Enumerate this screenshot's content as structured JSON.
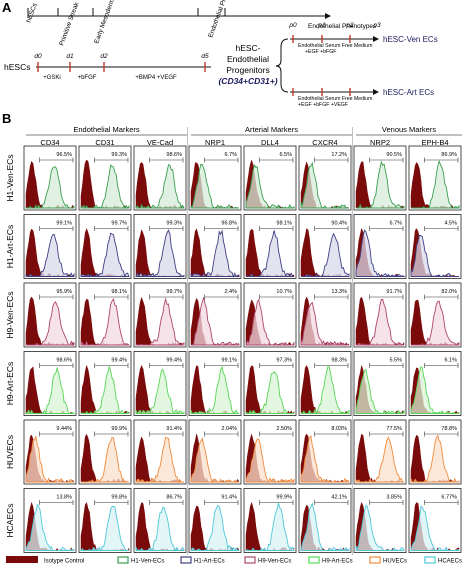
{
  "panelA": {
    "label": "A",
    "top_stages": [
      "hESCs",
      "Primitive Streak",
      "Early Mesoderm",
      "Endothelial Progenitors"
    ],
    "top_end": "Endothelial Phenotypes",
    "left_label": "hESCs",
    "days": [
      "d0",
      "d1",
      "d2",
      "d5"
    ],
    "treatments": [
      "+GSKi",
      "+bFGF",
      "+BMP4 +VEGF"
    ],
    "center_lines": [
      "hESC-",
      "Endothelial",
      "Progenitors",
      "(CD34+CD31+)"
    ],
    "passages": [
      "p0",
      "p1",
      "p2",
      "p3"
    ],
    "ven": {
      "medium": "Endothelial Serum Free Medium",
      "factors": "+EGF +bFGF",
      "result": "hESC-Ven ECs"
    },
    "art": {
      "medium": "Endothelial Serum Free Medium",
      "factors": "+EGF +bFGF +VEGF",
      "result": "hESC-Art ECs"
    }
  },
  "panelB": {
    "label": "B",
    "groups": [
      "Endothelial Markers",
      "Arterial Markers",
      "Venous Markers"
    ],
    "columns": [
      "CD34",
      "CD31",
      "VE-Cad",
      "NRP1",
      "DLL4",
      "CXCR4",
      "NRP2",
      "EPH-B4"
    ],
    "rows": [
      {
        "label": "H1-Ven-ECs",
        "color": "#3a9e4f",
        "fill": "#d6ecd9",
        "values": [
          "96.5%",
          "99.3%",
          "98.6%",
          "6.7%",
          "6.5%",
          "17.2%",
          "90.5%",
          "86.9%"
        ]
      },
      {
        "label": "H1-Art-ECs",
        "color": "#3f3f84",
        "fill": "#d9d9ea",
        "values": [
          "99.1%",
          "99.7%",
          "99.3%",
          "96.8%",
          "98.1%",
          "90.4%",
          "6.7%",
          "4.5%"
        ]
      },
      {
        "label": "H9-Ven-ECs",
        "color": "#b0456a",
        "fill": "#f1d9e2",
        "values": [
          "95.9%",
          "98.1%",
          "99.7%",
          "2.4%",
          "10.7%",
          "13.3%",
          "91.7%",
          "82.0%"
        ]
      },
      {
        "label": "H9-Art-ECs",
        "color": "#57d657",
        "fill": "#d9f3d6",
        "values": [
          "98.6%",
          "99.4%",
          "99.4%",
          "99.1%",
          "97.3%",
          "98.3%",
          "5.5%",
          "6.1%"
        ]
      },
      {
        "label": "HUVECs",
        "color": "#f08a3c",
        "fill": "#fbe0cc",
        "values": [
          "9.44%",
          "99.9%",
          "91.4%",
          "2.04%",
          "2.50%",
          "8.03%",
          "77.5%",
          "78.8%"
        ]
      },
      {
        "label": "HCAECs",
        "color": "#4fc9d8",
        "fill": "#d8f1f4",
        "values": [
          "13.8%",
          "99.8%",
          "86.7%",
          "91.4%",
          "99.9%",
          "42.1%",
          "3.85%",
          "6.77%"
        ]
      }
    ],
    "isotype": {
      "label": "Isotype Control",
      "color": "#7b0a0a"
    }
  },
  "legend": [
    "Isotype Control",
    "H1-Ven-ECs",
    "H1-Art-ECs",
    "H9-Ven-ECs",
    "H9-Art-ECs",
    "HUVECs",
    "HCAECs"
  ]
}
